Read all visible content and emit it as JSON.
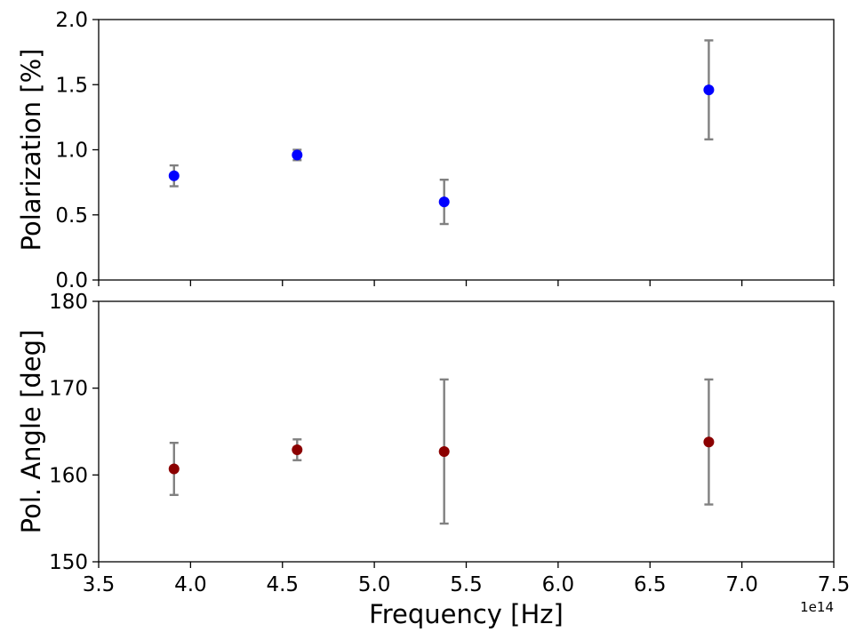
{
  "chart_data": [
    {
      "type": "scatter",
      "xlabel": "",
      "ylabel": "Polarization [%]",
      "xlim": [
        350000000000000.0,
        750000000000000.0
      ],
      "ylim": [
        0.0,
        2.0
      ],
      "xticks": [
        350000000000000.0,
        400000000000000.0,
        450000000000000.0,
        500000000000000.0,
        550000000000000.0,
        600000000000000.0,
        650000000000000.0,
        700000000000000.0,
        750000000000000.0
      ],
      "xtick_labels": [],
      "yticks": [
        0.0,
        0.5,
        1.0,
        1.5,
        2.0
      ],
      "ytick_labels": [
        "0.0",
        "0.5",
        "1.0",
        "1.5",
        "2.0"
      ],
      "grid": false,
      "marker_color": "#0000ff",
      "errorbar_color": "#808080",
      "points": [
        {
          "x": 391000000000000.0,
          "y": 0.8,
          "yerr": 0.08
        },
        {
          "x": 458000000000000.0,
          "y": 0.96,
          "yerr": 0.04
        },
        {
          "x": 538000000000000.0,
          "y": 0.6,
          "yerr": 0.17
        },
        {
          "x": 682000000000000.0,
          "y": 1.46,
          "yerr": 0.38
        }
      ]
    },
    {
      "type": "scatter",
      "xlabel": "Frequency [Hz]",
      "ylabel": "Pol. Angle [deg]",
      "xlim": [
        350000000000000.0,
        750000000000000.0
      ],
      "ylim": [
        150,
        180
      ],
      "xticks": [
        350000000000000.0,
        400000000000000.0,
        450000000000000.0,
        500000000000000.0,
        550000000000000.0,
        600000000000000.0,
        650000000000000.0,
        700000000000000.0,
        750000000000000.0
      ],
      "xtick_labels": [
        "3.5",
        "4.0",
        "4.5",
        "5.0",
        "5.5",
        "6.0",
        "6.5",
        "7.0",
        "7.5"
      ],
      "x_offset_label": "1e14",
      "yticks": [
        150,
        160,
        170,
        180
      ],
      "ytick_labels": [
        "150",
        "160",
        "170",
        "180"
      ],
      "grid": false,
      "marker_color": "#8b0000",
      "errorbar_color": "#808080",
      "points": [
        {
          "x": 391000000000000.0,
          "y": 160.7,
          "yerr": 3.0
        },
        {
          "x": 458000000000000.0,
          "y": 162.9,
          "yerr": 1.2
        },
        {
          "x": 538000000000000.0,
          "y": 162.7,
          "yerr": 8.3
        },
        {
          "x": 682000000000000.0,
          "y": 163.8,
          "yerr": 7.2
        }
      ]
    }
  ]
}
